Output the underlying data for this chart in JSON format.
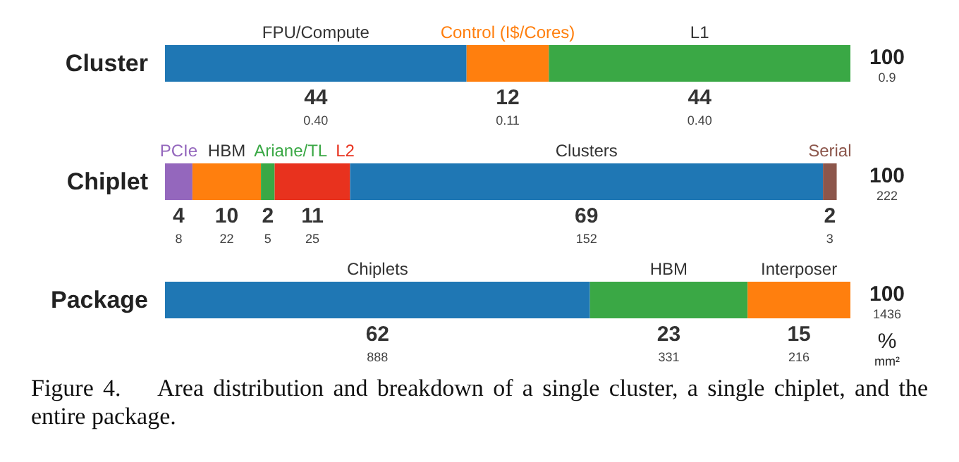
{
  "chart_data": [
    {
      "type": "bar",
      "orientation": "horizontal",
      "stacked": true,
      "legend": false,
      "categories": [
        "Cluster"
      ],
      "annotations": [
        "0.40",
        "0.11",
        "0.40",
        "100\n0.9"
      ],
      "series": [
        {
          "name": "FPU/Compute",
          "color": "#1f77b4",
          "values": [
            44
          ],
          "value_labels": [
            "44"
          ]
        },
        {
          "name": "Control (I$/Cores)",
          "color": "#ff7f0e",
          "values": [
            12
          ],
          "value_labels": [
            "12"
          ]
        },
        {
          "name": "L1",
          "color": "#3aa845",
          "values": [
            44
          ],
          "value_labels": [
            "44"
          ]
        }
      ]
    },
    {
      "type": "bar",
      "orientation": "horizontal",
      "stacked": true,
      "legend": false,
      "categories": [
        "Chiplet"
      ],
      "annotations": [
        "8",
        "22",
        "5",
        "25",
        "152",
        "3",
        "100\n222"
      ],
      "series": [
        {
          "name": "PCIe",
          "color": "#9467bd",
          "values": [
            4
          ],
          "value_labels": [
            "4"
          ]
        },
        {
          "name": "HBM",
          "color": "#ff7f0e",
          "values": [
            10
          ],
          "value_labels": [
            "10"
          ]
        },
        {
          "name": "Ariane/TL",
          "color": "#3aa845",
          "values": [
            2
          ],
          "value_labels": [
            "2"
          ]
        },
        {
          "name": "L2",
          "color": "#e8321e",
          "values": [
            11
          ],
          "value_labels": [
            "11"
          ]
        },
        {
          "name": "Clusters",
          "color": "#1f77b4",
          "values": [
            69
          ],
          "value_labels": [
            "69"
          ]
        },
        {
          "name": "Serial",
          "color": "#8c564b",
          "values": [
            2
          ],
          "value_labels": [
            "2"
          ]
        }
      ]
    },
    {
      "type": "bar",
      "orientation": "horizontal",
      "stacked": true,
      "legend": false,
      "categories": [
        "Package"
      ],
      "annotations": [
        "888",
        "331",
        "216",
        "100\n1436",
        "%\nmm²",
        "Figure 4.    Area distribution and breakdown of a single cluster, a single chiplet, and the entire package."
      ],
      "series": [
        {
          "name": "Chiplets",
          "color": "#1f77b4",
          "values": [
            62
          ],
          "value_labels": [
            "62"
          ]
        },
        {
          "name": "HBM",
          "color": "#3aa845",
          "values": [
            23
          ],
          "value_labels": [
            "23"
          ]
        },
        {
          "name": "Interposer",
          "color": "#ff7f0e",
          "values": [
            15
          ],
          "value_labels": [
            "15"
          ]
        }
      ]
    }
  ]
}
